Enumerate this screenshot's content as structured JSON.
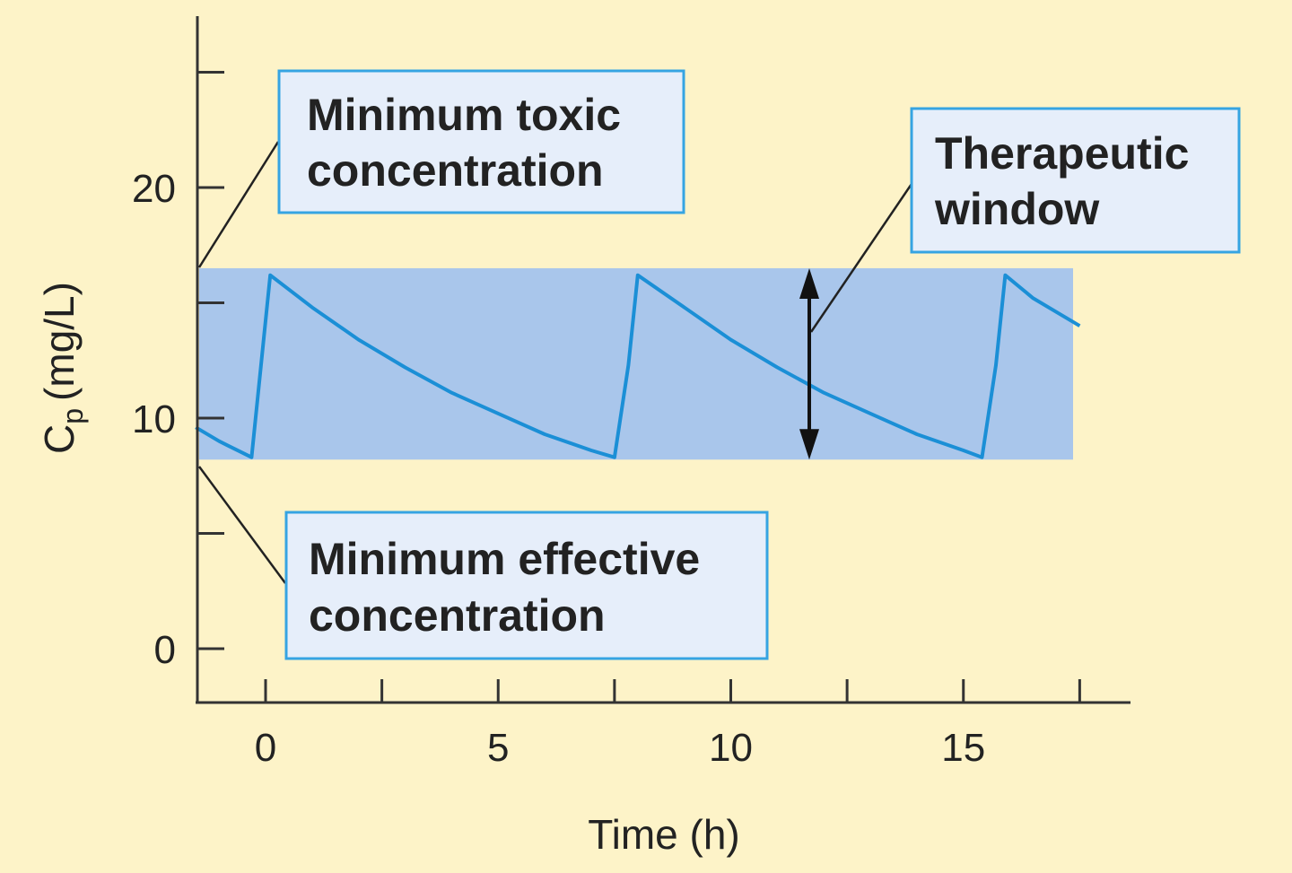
{
  "chart_data": {
    "type": "line",
    "title": "",
    "xlabel": "Time (h)",
    "ylabel": {
      "symbol": "C",
      "subscript": "p",
      "unit": "(mg/L)"
    },
    "xlim": [
      -1.5,
      17.5
    ],
    "ylim": [
      0,
      25
    ],
    "x_ticks": [
      0,
      5,
      10,
      15
    ],
    "x_minor_ticks": [
      2.5,
      7.5,
      12.5,
      17.5
    ],
    "y_ticks": [
      0,
      10,
      20
    ],
    "y_minor_ticks": [
      5,
      15,
      25
    ],
    "grid": false,
    "legend": "none",
    "therapeutic_window": {
      "lower": 8.2,
      "upper": 16.5
    },
    "series": [
      {
        "dose_interval_h": 7.9,
        "peak": 16.2,
        "trough": 8.3,
        "x": [
          -1.5,
          -1.0,
          -0.5,
          -0.3,
          0.1,
          1.0,
          2.0,
          3.0,
          4.0,
          5.0,
          6.0,
          7.0,
          7.5,
          7.8,
          8.0,
          9.0,
          10.0,
          11.0,
          12.0,
          13.0,
          14.0,
          15.0,
          15.4,
          15.7,
          15.9,
          16.5,
          17.0,
          17.5
        ],
        "y": [
          9.6,
          9.0,
          8.5,
          8.3,
          16.2,
          14.8,
          13.4,
          12.2,
          11.1,
          10.2,
          9.3,
          8.6,
          8.3,
          12.3,
          16.2,
          14.8,
          13.4,
          12.2,
          11.1,
          10.2,
          9.3,
          8.6,
          8.3,
          12.3,
          16.2,
          15.2,
          14.6,
          14.0
        ]
      }
    ],
    "annotations": {
      "toxic": [
        "Minimum toxic",
        "concentration"
      ],
      "effective": [
        "Minimum effective",
        "concentration"
      ],
      "window": [
        "Therapeutic",
        "window"
      ]
    },
    "colors": {
      "background": "#fdf3c8",
      "band": "#a9c6eb",
      "line": "#1b8fd6",
      "callout_fill": "#e6eefa",
      "callout_border": "#36a4e2",
      "axis": "#333333"
    }
  }
}
